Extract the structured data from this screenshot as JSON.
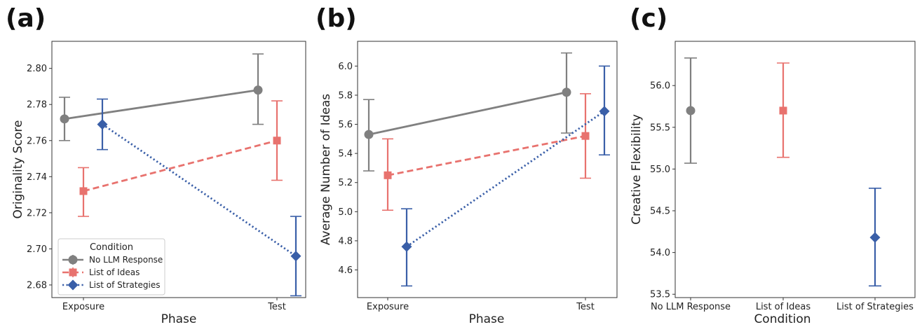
{
  "colors": {
    "No LLM Response": "#808080",
    "List of Ideas": "#e8726e",
    "List of Strategies": "#3a5fa8"
  },
  "chart_data": [
    {
      "panel_label": "(a)",
      "type": "line",
      "x": [
        "Exposure",
        "Test"
      ],
      "xlabel": "Phase",
      "ylabel": "Originality Score",
      "ylim": [
        2.673,
        2.815
      ],
      "yticks": [
        "2.68",
        "2.70",
        "2.72",
        "2.74",
        "2.76",
        "2.78",
        "2.80"
      ],
      "legend": {
        "title": "Condition",
        "placement": "lower left",
        "entries": [
          "No LLM Response",
          "List of Ideas",
          "List of Strategies"
        ]
      },
      "series": [
        {
          "name": "No LLM Response",
          "marker": "circle",
          "linestyle": "solid",
          "offset": 0,
          "values": [
            2.772,
            2.788
          ],
          "ci_low": [
            2.76,
            2.769
          ],
          "ci_high": [
            2.784,
            2.808
          ]
        },
        {
          "name": "List of Ideas",
          "marker": "square",
          "linestyle": "dashed",
          "offset": 1,
          "values": [
            2.732,
            2.76
          ],
          "ci_low": [
            2.718,
            2.738
          ],
          "ci_high": [
            2.745,
            2.782
          ]
        },
        {
          "name": "List of Strategies",
          "marker": "diamond",
          "linestyle": "dotted",
          "offset": 2,
          "values": [
            2.769,
            2.696
          ],
          "ci_low": [
            2.755,
            2.674
          ],
          "ci_high": [
            2.783,
            2.718
          ]
        }
      ]
    },
    {
      "panel_label": "(b)",
      "type": "line",
      "x": [
        "Exposure",
        "Test"
      ],
      "xlabel": "Phase",
      "ylabel": "Average Number of Ideas",
      "ylim": [
        4.41,
        6.17
      ],
      "yticks": [
        "4.6",
        "4.8",
        "5.0",
        "5.2",
        "5.4",
        "5.6",
        "5.8",
        "6.0"
      ],
      "series": [
        {
          "name": "No LLM Response",
          "marker": "circle",
          "linestyle": "solid",
          "offset": 0,
          "values": [
            5.53,
            5.82
          ],
          "ci_low": [
            5.28,
            5.54
          ],
          "ci_high": [
            5.77,
            6.09
          ]
        },
        {
          "name": "List of Ideas",
          "marker": "square",
          "linestyle": "dashed",
          "offset": 1,
          "values": [
            5.25,
            5.52
          ],
          "ci_low": [
            5.01,
            5.23
          ],
          "ci_high": [
            5.5,
            5.81
          ]
        },
        {
          "name": "List of Strategies",
          "marker": "diamond",
          "linestyle": "dotted",
          "offset": 2,
          "values": [
            4.76,
            5.69
          ],
          "ci_low": [
            4.49,
            5.39
          ],
          "ci_high": [
            5.02,
            6.0
          ]
        }
      ]
    },
    {
      "panel_label": "(c)",
      "type": "scatter",
      "categories": [
        "No LLM Response",
        "List of Ideas",
        "List of Strategies"
      ],
      "xlabel": "Condition",
      "ylabel": "Creative Flexibility",
      "ylim": [
        53.46,
        56.53
      ],
      "yticks": [
        "53.5",
        "54.0",
        "54.5",
        "55.0",
        "55.5",
        "56.0"
      ],
      "series": [
        {
          "name": "No LLM Response",
          "marker": "circle",
          "values": [
            55.7
          ],
          "ci_low": [
            55.07
          ],
          "ci_high": [
            56.33
          ]
        },
        {
          "name": "List of Ideas",
          "marker": "square",
          "values": [
            55.7
          ],
          "ci_low": [
            55.14
          ],
          "ci_high": [
            56.27
          ]
        },
        {
          "name": "List of Strategies",
          "marker": "diamond",
          "values": [
            54.18
          ],
          "ci_low": [
            53.6
          ],
          "ci_high": [
            54.77
          ]
        }
      ]
    }
  ]
}
